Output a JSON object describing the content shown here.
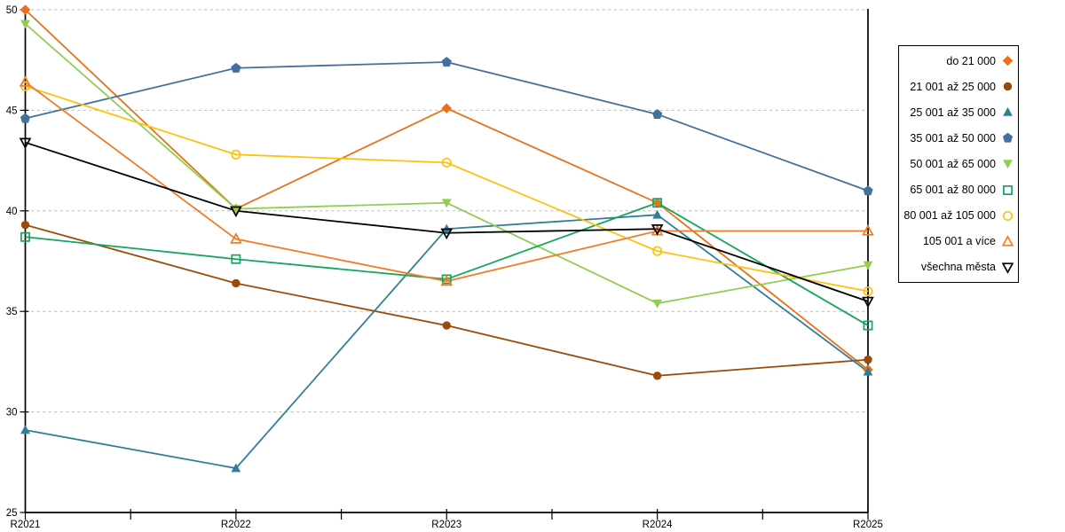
{
  "chart_data": {
    "type": "line",
    "title": "",
    "xlabel": "",
    "ylabel": "",
    "categories": [
      "R2021",
      "R2022",
      "R2023",
      "R2024",
      "R2025"
    ],
    "series": [
      {
        "name": "do 21 000",
        "color": "#E8711A",
        "marker": "diamond",
        "fill": "solid",
        "values": [
          50.0,
          40.1,
          45.1,
          40.4,
          32.1
        ]
      },
      {
        "name": "21 001 až 25 000",
        "color": "#9C4A08",
        "marker": "circle",
        "fill": "solid",
        "values": [
          39.3,
          36.4,
          34.3,
          31.8,
          32.6
        ]
      },
      {
        "name": "25 001 až 35 000",
        "color": "#317E96",
        "marker": "triangle-up",
        "fill": "solid",
        "values": [
          29.1,
          27.2,
          39.1,
          39.8,
          32.0
        ]
      },
      {
        "name": "35 001 až 50 000",
        "color": "#42709F",
        "marker": "pentagon",
        "fill": "solid",
        "values": [
          44.6,
          47.1,
          47.4,
          44.8,
          41.0
        ]
      },
      {
        "name": "50 001 až 65 000",
        "color": "#92CD50",
        "marker": "triangle-down",
        "fill": "solid",
        "values": [
          49.3,
          40.1,
          40.4,
          35.4,
          37.3
        ]
      },
      {
        "name": "65 001 až 80 000",
        "color": "#14A65A",
        "marker": "square",
        "fill": "open",
        "values": [
          38.7,
          37.6,
          36.6,
          40.4,
          34.3
        ]
      },
      {
        "name": "80 001 až 105 000",
        "color": "#FEC20E",
        "marker": "circle",
        "fill": "open",
        "values": [
          46.2,
          42.8,
          42.4,
          38.0,
          36.0
        ]
      },
      {
        "name": "105 001 a více",
        "color": "#F17C28",
        "marker": "triangle-up",
        "fill": "open",
        "values": [
          46.4,
          38.6,
          36.5,
          39.0,
          39.0
        ]
      },
      {
        "name": "všechna města",
        "color": "#000000",
        "marker": "triangle-down",
        "fill": "open",
        "values": [
          43.4,
          40.0,
          38.9,
          39.1,
          35.5
        ]
      }
    ],
    "ylim": [
      25,
      50
    ],
    "yticks": [
      25,
      30,
      35,
      40,
      45,
      50
    ],
    "grid": "horizontal dashed",
    "grid_color": "#C0C0C0",
    "axis_color": "#000000",
    "legend_position": "right",
    "legend_border_color": "#000000"
  }
}
